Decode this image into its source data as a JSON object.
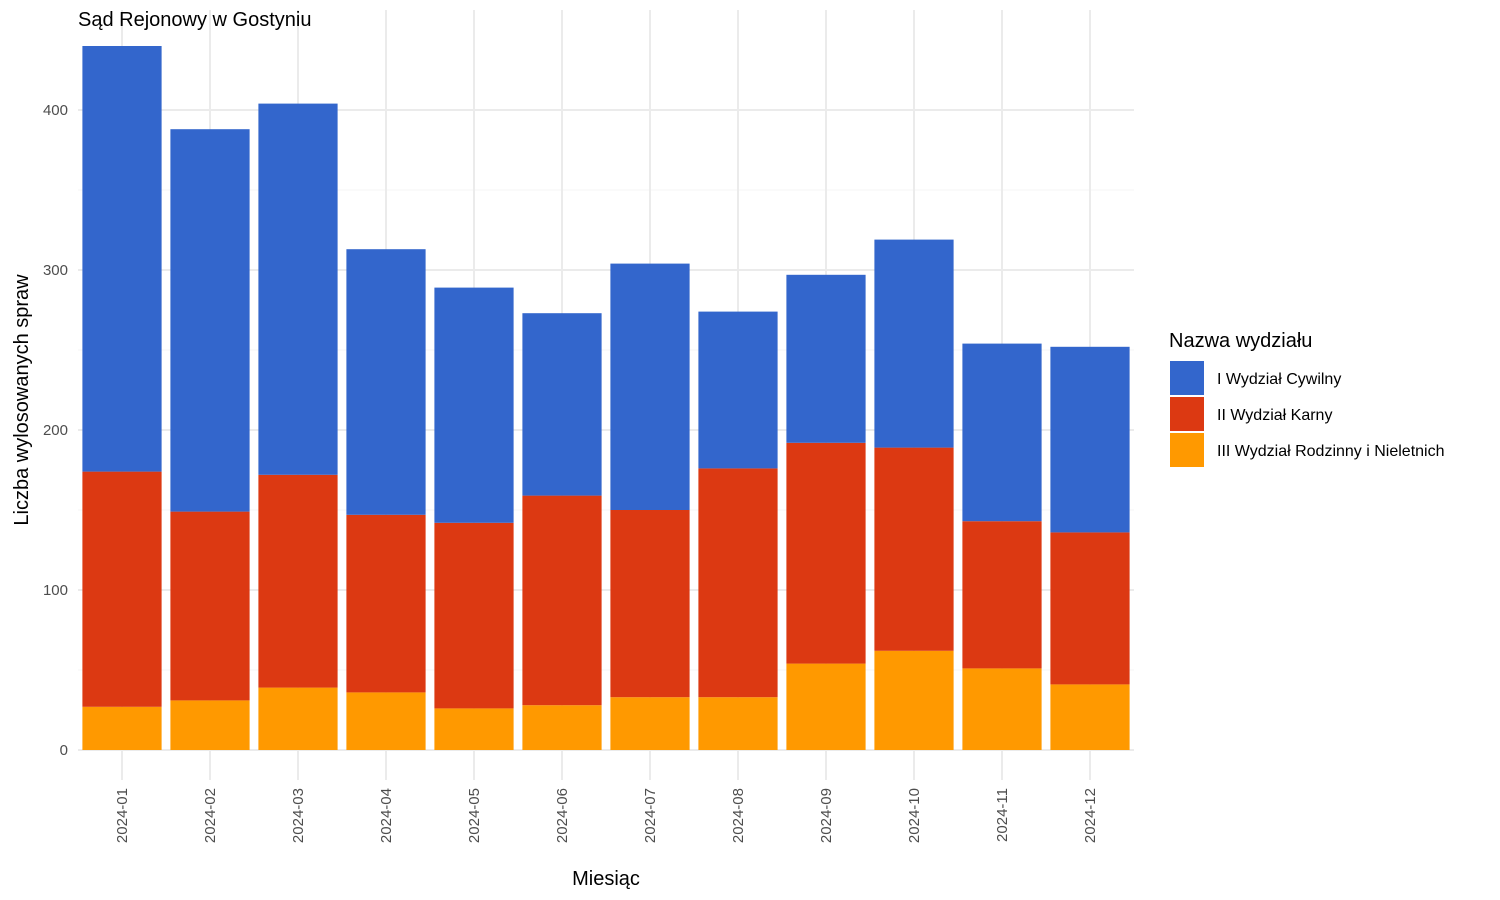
{
  "chart_data": {
    "type": "bar",
    "stacked": true,
    "title": "Sąd Rejonowy w Gostyniu",
    "xlabel": "Miesiąc",
    "ylabel": "Liczba wylosowanych spraw",
    "ylim": [
      0,
      440
    ],
    "y_ticks": [
      0,
      100,
      200,
      300,
      400
    ],
    "grid": true,
    "legend_position": "right",
    "legend_title": "Nazwa wydziału",
    "categories": [
      "2024-01",
      "2024-02",
      "2024-03",
      "2024-04",
      "2024-05",
      "2024-06",
      "2024-07",
      "2024-08",
      "2024-09",
      "2024-10",
      "2024-11",
      "2024-12"
    ],
    "series": [
      {
        "name": "III Wydział Rodzinny i Nieletnich",
        "color": "#ff9900",
        "values": [
          27,
          31,
          39,
          36,
          26,
          28,
          33,
          33,
          54,
          62,
          51,
          41
        ]
      },
      {
        "name": "II Wydział Karny",
        "color": "#dc3912",
        "values": [
          147,
          118,
          133,
          111,
          116,
          131,
          117,
          143,
          138,
          127,
          92,
          95
        ]
      },
      {
        "name": "I Wydział Cywilny",
        "color": "#3366cc",
        "values": [
          266,
          239,
          232,
          166,
          147,
          114,
          154,
          98,
          105,
          130,
          111,
          116
        ]
      }
    ],
    "legend_order": [
      "I Wydział Cywilny",
      "II Wydział Karny",
      "III Wydział Rodzinny i Nieletnich"
    ]
  }
}
